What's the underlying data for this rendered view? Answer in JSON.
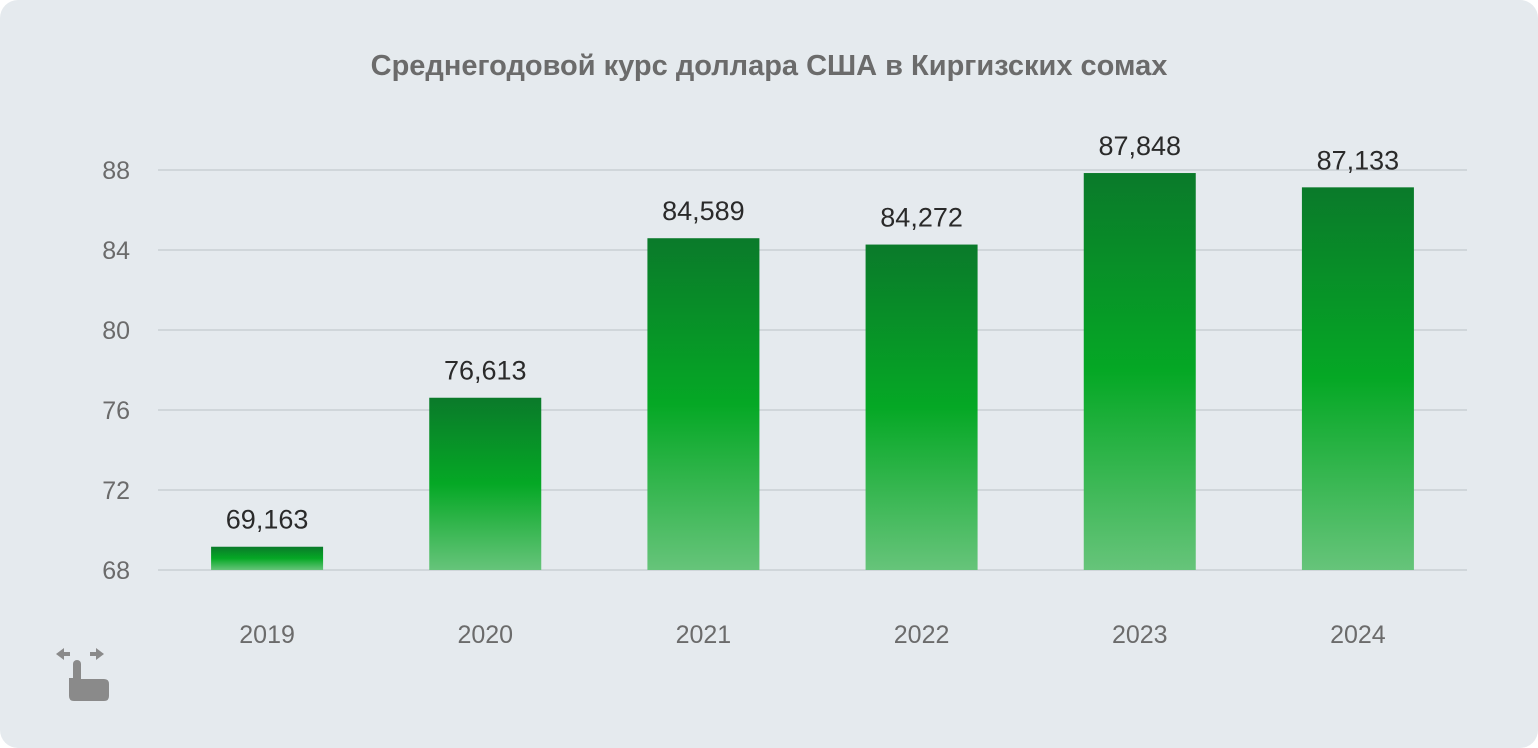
{
  "chart_data": {
    "type": "bar",
    "title": "Среднегодовой курс доллара США в Киргизских сомах",
    "categories": [
      "2019",
      "2020",
      "2021",
      "2022",
      "2023",
      "2024"
    ],
    "values": [
      69.163,
      76.613,
      84.589,
      84.272,
      87.848,
      87.133
    ],
    "value_labels": [
      "69,163",
      "76,613",
      "84,589",
      "84,272",
      "87,848",
      "87,133"
    ],
    "yticks": [
      "68",
      "72",
      "76",
      "80",
      "84",
      "88"
    ],
    "ytick_values": [
      68,
      72,
      76,
      80,
      84,
      88
    ],
    "ylim": [
      68,
      88
    ],
    "xlabel": "",
    "ylabel": "",
    "grid": true,
    "legend": "none",
    "colors": {
      "bar_top": "#0a7a2a",
      "bar_mid": "#05a825",
      "bar_bottom": "#66c47a",
      "grid": "#c9cfd4",
      "tick_text": "#6b6b6b",
      "value_text": "#2a2a2a",
      "background": "#e5eaee"
    }
  },
  "icons": {
    "gesture": "swipe-horizontal-icon"
  }
}
